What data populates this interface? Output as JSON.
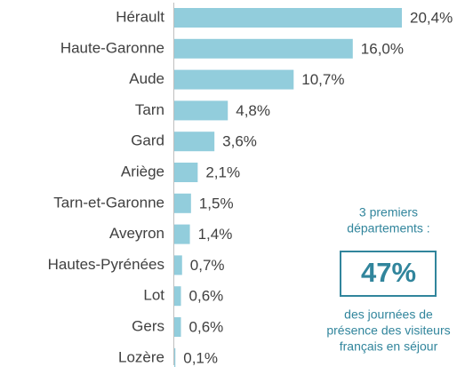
{
  "chart_data": {
    "type": "bar",
    "orientation": "horizontal",
    "categories": [
      "Hérault",
      "Haute-Garonne",
      "Aude",
      "Tarn",
      "Gard",
      "Ariège",
      "Tarn-et-Garonne",
      "Aveyron",
      "Hautes-Pyrénées",
      "Lot",
      "Gers",
      "Lozère"
    ],
    "values": [
      20.4,
      16.0,
      10.7,
      4.8,
      3.6,
      2.1,
      1.5,
      1.4,
      0.7,
      0.6,
      0.6,
      0.1
    ],
    "value_labels": [
      "20,4%",
      "16,0%",
      "10,7%",
      "4,8%",
      "3,6%",
      "2,1%",
      "1,5%",
      "1,4%",
      "0,7%",
      "0,6%",
      "0,6%",
      "0,1%"
    ],
    "color": "#92cddc",
    "annotation": {
      "heading": [
        "3 premiers",
        "départements :"
      ],
      "figure": "47%",
      "caption": [
        "des journées de",
        "présence des visiteurs",
        "français en séjour"
      ]
    }
  }
}
